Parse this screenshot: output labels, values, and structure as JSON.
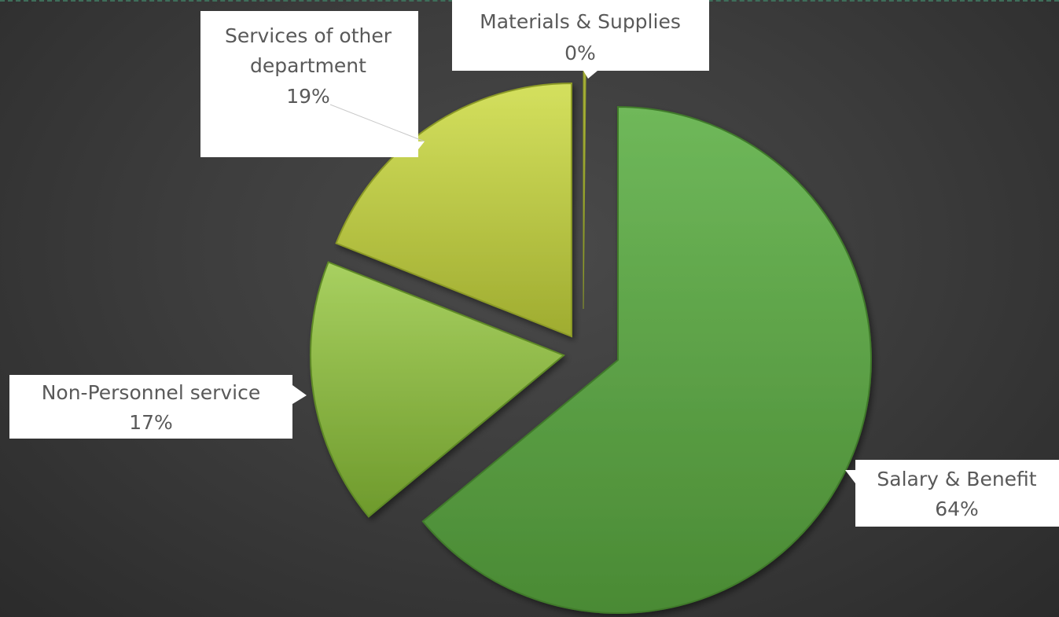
{
  "chart_data": {
    "type": "pie",
    "exploded": true,
    "slices": [
      {
        "name": "Salary & Benefit",
        "value": 64,
        "label": "64%",
        "color_light": "#6fb85a",
        "color_dark": "#4a8a34"
      },
      {
        "name": "Non-Personnel service",
        "value": 17,
        "label": "17%",
        "color_light": "#a8d060",
        "color_dark": "#6e9a2c"
      },
      {
        "name": "Services of other department",
        "value": 19,
        "label": "19%",
        "color_light": "#d4e05e",
        "color_dark": "#9fac30"
      },
      {
        "name": "Materials & Supplies",
        "value": 0,
        "label": "0%",
        "color_light": "#c8d050",
        "color_dark": "#8a9430"
      }
    ],
    "callouts": {
      "salary": {
        "line1": "Salary & Benefit",
        "line2": "64%"
      },
      "nonpersonnel": {
        "line1": "Non-Personnel service",
        "line2": "17%"
      },
      "services": {
        "line1": "Services of other",
        "line2": "department",
        "line3": "19%"
      },
      "materials": {
        "line1": "Materials & Supplies",
        "line2": "0%"
      }
    },
    "legend": "none",
    "grid": false
  },
  "colors": {
    "background": "#3d3d3d",
    "callout_fill": "#ffffff",
    "callout_text": "#595959",
    "border_accent": "#3e6e5a"
  }
}
